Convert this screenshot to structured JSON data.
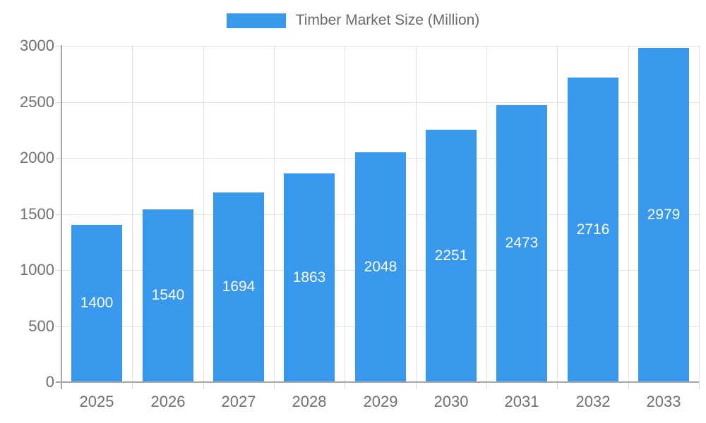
{
  "legend": {
    "swatch_color": "#3798ec",
    "label": "Timber Market Size (Million)"
  },
  "chart_data": {
    "type": "bar",
    "title": "Timber Market Size (Million)",
    "series_name": "Timber Market Size (Million)",
    "categories": [
      "2025",
      "2026",
      "2027",
      "2028",
      "2029",
      "2030",
      "2031",
      "2032",
      "2033"
    ],
    "values": [
      1400,
      1540,
      1694,
      1863,
      2048,
      2251,
      2473,
      2716,
      2979
    ],
    "bar_labels": [
      "1400",
      "1540",
      "1694",
      "1863",
      "2048",
      "2251",
      "2473",
      "2716",
      "2979"
    ],
    "xlabel": "",
    "ylabel": "",
    "ylim": [
      0,
      3000
    ],
    "yticks": [
      0,
      500,
      1000,
      1500,
      2000,
      2500,
      3000
    ],
    "grid": true,
    "legend_position": "top",
    "colors": {
      "bar": "#3798ec",
      "grid": "#e3e3e3",
      "axis": "#a6a6a6",
      "tick": "#d8d8d8",
      "axis_text": "#707070",
      "legend_text": "#6b6b6b",
      "bar_label": "#ffffff",
      "background": "#ffffff"
    }
  }
}
